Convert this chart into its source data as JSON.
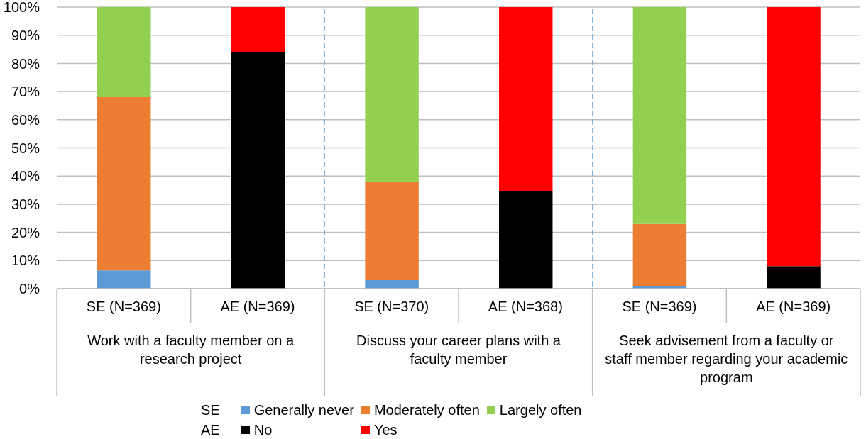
{
  "chart_data": {
    "type": "bar",
    "categories": [
      "SE (N=369)",
      "AE (N=369)",
      "SE (N=370)",
      "AE (N=368)",
      "SE (N=369)",
      "AE (N=369)"
    ],
    "series": [
      {
        "name": "Generally never",
        "color": "#5b9bd5",
        "values": [
          6.5,
          null,
          3,
          null,
          1,
          null
        ]
      },
      {
        "name": "Moderately often",
        "color": "#ed7d31",
        "values": [
          61.5,
          null,
          35,
          null,
          22,
          null
        ]
      },
      {
        "name": "Largely often",
        "color": "#92d050",
        "values": [
          32,
          null,
          62,
          null,
          77,
          null
        ]
      },
      {
        "name": "No",
        "color": "#000000",
        "values": [
          null,
          84,
          null,
          34.5,
          null,
          8
        ]
      },
      {
        "name": "Yes",
        "color": "#ff0000",
        "values": [
          null,
          16,
          null,
          65.5,
          null,
          92
        ]
      }
    ],
    "stacked": true,
    "ylim": [
      0,
      100
    ],
    "yticks": [
      {
        "value": 0,
        "label": "0%"
      },
      {
        "value": 10,
        "label": "10%"
      },
      {
        "value": 20,
        "label": "20%"
      },
      {
        "value": 30,
        "label": "30%"
      },
      {
        "value": 40,
        "label": "40%"
      },
      {
        "value": 50,
        "label": "50%"
      },
      {
        "value": 60,
        "label": "60%"
      },
      {
        "value": 70,
        "label": "70%"
      },
      {
        "value": 80,
        "label": "80%"
      },
      {
        "value": 90,
        "label": "90%"
      },
      {
        "value": 100,
        "label": "100%"
      }
    ],
    "grid": "y",
    "legend": "bottom",
    "annotations": [
      "Work with a faculty member on a research project",
      "Discuss your career plans with a faculty member",
      "Seek advisement from a faculty or staff member regarding your academic program",
      "SE",
      "AE"
    ]
  }
}
